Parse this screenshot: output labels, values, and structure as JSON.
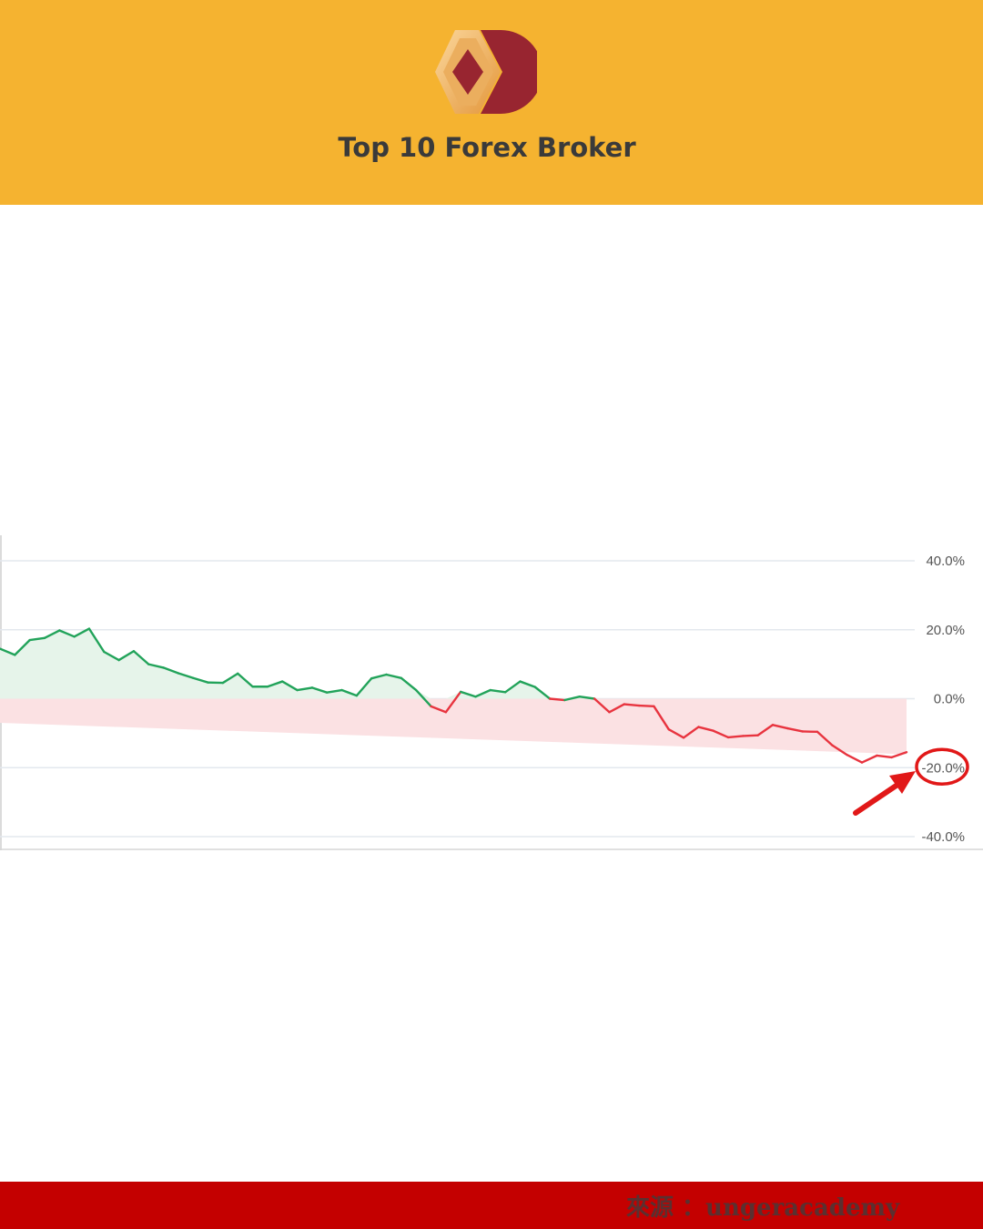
{
  "header": {
    "title": "Top 10 Forex Broker",
    "logo_icon": "hive-diamond-logo",
    "background_color": "#f5b330"
  },
  "chart_data": {
    "type": "area",
    "title": "",
    "xlabel": "",
    "ylabel": "",
    "ylim": [
      -40,
      40
    ],
    "y_ticks": [
      "40.0%",
      "20.0%",
      "0.0%",
      "-20.0%",
      "-40.0%"
    ],
    "grid": true,
    "positive_color": "#22a35a",
    "negative_color": "#e8343f",
    "values": [
      14.5,
      12.7,
      17.0,
      17.6,
      19.8,
      18.0,
      20.3,
      13.6,
      11.2,
      13.8,
      10.0,
      9.0,
      7.4,
      6.0,
      4.7,
      4.6,
      7.3,
      3.5,
      3.5,
      5.0,
      2.5,
      3.2,
      1.8,
      2.5,
      0.9,
      5.9,
      7.0,
      6.0,
      2.5,
      -2.2,
      -3.9,
      2.0,
      0.6,
      2.5,
      1.9,
      5.0,
      3.4,
      0.0,
      -0.4,
      0.6,
      0.0,
      -3.9,
      -1.6,
      -2.0,
      -2.2,
      -8.9,
      -11.3,
      -8.2,
      -9.3,
      -11.2,
      -10.8,
      -10.6,
      -7.6,
      -8.6,
      -9.5,
      -9.6,
      -13.5,
      -16.3,
      -18.5,
      -16.5,
      -17.0,
      -15.5
    ],
    "baseline_values": [
      -7.0,
      -16.1
    ],
    "highlight": {
      "tick_label": "-20.0%",
      "color": "#e11818"
    }
  },
  "footer": {
    "source_text": "來源 ：ungeracademy",
    "background_color": "#c40000"
  }
}
